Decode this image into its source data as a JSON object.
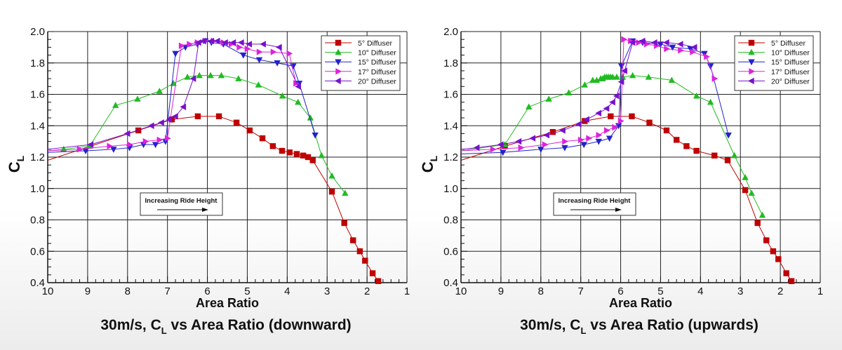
{
  "colors": {
    "s5": "#c00000",
    "s10": "#22bb22",
    "s15": "#2222cc",
    "s17": "#dd22dd",
    "s20": "#7711cc"
  },
  "chart_data": [
    {
      "type": "line",
      "title": "30m/s, C_L vs Area Ratio (downward)",
      "title_parts": {
        "pre": "30m/s, C",
        "sub": "L",
        "post": " vs Area Ratio (downward)"
      },
      "xlabel": "Area Ratio",
      "ylabel": {
        "main": "C",
        "sub": "L"
      },
      "xlim": [
        10,
        1
      ],
      "ylim": [
        0.4,
        2.0
      ],
      "xticks": [
        "10",
        "9",
        "8",
        "7",
        "6",
        "5",
        "4",
        "3",
        "2",
        "1"
      ],
      "yticks": [
        "0.4",
        "0.6",
        "0.8",
        "1.0",
        "1.2",
        "1.4",
        "1.6",
        "1.8",
        "2.0"
      ],
      "grid": true,
      "legend_position": "top-right",
      "annotation": "Increasing Ride Height",
      "series": [
        {
          "name": "5° Diffuser",
          "marker": "square",
          "color_key": "s5",
          "x": [
            10,
            7.73,
            6.89,
            6.24,
            5.71,
            5.27,
            4.94,
            4.62,
            4.36,
            4.13,
            3.94,
            3.76,
            3.6,
            3.48,
            3.36,
            2.88,
            2.57,
            2.35,
            2.18,
            2.05,
            1.86,
            1.72
          ],
          "y": [
            1.18,
            1.37,
            1.44,
            1.46,
            1.46,
            1.42,
            1.37,
            1.32,
            1.27,
            1.24,
            1.23,
            1.22,
            1.21,
            1.2,
            1.18,
            0.98,
            0.78,
            0.67,
            0.6,
            0.54,
            0.46,
            0.41
          ]
        },
        {
          "name": "10° Diffuser",
          "marker": "triangle-up",
          "color_key": "s10",
          "x": [
            10,
            9.6,
            8.95,
            8.3,
            7.75,
            7.2,
            6.85,
            6.5,
            6.2,
            5.92,
            5.65,
            5.22,
            4.72,
            4.12,
            3.73,
            3.42,
            3.14,
            2.88,
            2.55
          ],
          "y": [
            1.24,
            1.25,
            1.27,
            1.53,
            1.57,
            1.62,
            1.67,
            1.71,
            1.72,
            1.72,
            1.72,
            1.7,
            1.66,
            1.59,
            1.55,
            1.45,
            1.21,
            1.08,
            0.97
          ]
        },
        {
          "name": "15° Diffuser",
          "marker": "triangle-down",
          "color_key": "s15",
          "x": [
            10,
            9.05,
            8.35,
            7.95,
            7.6,
            7.3,
            7.05,
            6.8,
            6.55,
            6.25,
            6.05,
            5.9,
            5.6,
            5.1,
            4.7,
            4.25,
            3.85,
            3.7,
            3.3
          ],
          "y": [
            1.23,
            1.24,
            1.25,
            1.26,
            1.28,
            1.28,
            1.3,
            1.86,
            1.9,
            1.92,
            1.94,
            1.93,
            1.92,
            1.85,
            1.82,
            1.8,
            1.78,
            1.67,
            1.34
          ]
        },
        {
          "name": "17° Diffuser",
          "marker": "triangle-right",
          "color_key": "s17",
          "x": [
            10,
            9.2,
            8.45,
            7.95,
            7.55,
            7.2,
            7.0,
            6.65,
            6.45,
            6.25,
            6.05,
            5.85,
            5.6,
            5.4,
            5.2,
            5.0,
            4.7,
            4.35,
            3.95,
            3.78
          ],
          "y": [
            1.24,
            1.25,
            1.27,
            1.28,
            1.3,
            1.31,
            1.32,
            1.91,
            1.92,
            1.93,
            1.94,
            1.94,
            1.93,
            1.92,
            1.9,
            1.89,
            1.87,
            1.87,
            1.86,
            1.67
          ]
        },
        {
          "name": "20° Diffuser",
          "marker": "triangle-left",
          "color_key": "s20",
          "x": [
            10,
            8.92,
            8.0,
            7.4,
            7.15,
            6.95,
            6.8,
            6.6,
            6.35,
            6.22,
            6.1,
            5.9,
            5.75,
            5.55,
            5.35,
            5.15,
            4.95,
            4.6,
            4.2,
            3.72
          ],
          "y": [
            1.25,
            1.28,
            1.35,
            1.4,
            1.42,
            1.44,
            1.46,
            1.52,
            1.7,
            1.93,
            1.94,
            1.94,
            1.94,
            1.93,
            1.93,
            1.93,
            1.92,
            1.92,
            1.9,
            1.65
          ]
        }
      ]
    },
    {
      "type": "line",
      "title": "30m/s, C_L vs Area Ratio (upwards)",
      "title_parts": {
        "pre": "30m/s, C",
        "sub": "L",
        "post": " vs Area Ratio (upwards)"
      },
      "xlabel": "Area Ratio",
      "ylabel": {
        "main": "C",
        "sub": "L"
      },
      "xlim": [
        10,
        1
      ],
      "ylim": [
        0.4,
        2.0
      ],
      "xticks": [
        "10",
        "9",
        "8",
        "7",
        "6",
        "5",
        "4",
        "3",
        "2",
        "1"
      ],
      "yticks": [
        "0.4",
        "0.6",
        "0.8",
        "1.0",
        "1.2",
        "1.4",
        "1.6",
        "1.8",
        "2.0"
      ],
      "grid": true,
      "legend_position": "top-right",
      "annotation": "Increasing Ride Height",
      "series": [
        {
          "name": "5° Diffuser",
          "marker": "square",
          "color_key": "s5",
          "x": [
            10,
            8.9,
            7.7,
            6.9,
            6.25,
            5.72,
            5.28,
            4.85,
            4.6,
            4.35,
            4.1,
            3.65,
            3.32,
            2.88,
            2.57,
            2.35,
            2.18,
            2.05,
            1.85,
            1.72
          ],
          "y": [
            1.18,
            1.27,
            1.36,
            1.43,
            1.46,
            1.46,
            1.42,
            1.37,
            1.31,
            1.27,
            1.24,
            1.21,
            1.18,
            0.99,
            0.78,
            0.67,
            0.6,
            0.55,
            0.46,
            0.41
          ]
        },
        {
          "name": "10° Diffuser",
          "marker": "triangle-up",
          "color_key": "s10",
          "x": [
            10,
            8.9,
            8.3,
            7.8,
            7.3,
            6.9,
            6.7,
            6.6,
            6.5,
            6.45,
            6.4,
            6.35,
            6.3,
            6.25,
            6.2,
            6.1,
            5.95,
            5.7,
            5.3,
            4.72,
            4.1,
            3.75,
            3.15,
            2.88,
            2.72,
            2.45
          ],
          "y": [
            1.24,
            1.28,
            1.52,
            1.57,
            1.61,
            1.66,
            1.69,
            1.69,
            1.7,
            1.7,
            1.71,
            1.71,
            1.71,
            1.71,
            1.71,
            1.71,
            1.71,
            1.72,
            1.71,
            1.69,
            1.59,
            1.55,
            1.21,
            1.07,
            0.97,
            0.83
          ]
        },
        {
          "name": "15° Diffuser",
          "marker": "triangle-down",
          "color_key": "s15",
          "x": [
            10,
            8.95,
            8.0,
            7.4,
            6.92,
            6.55,
            6.28,
            6.05,
            5.98,
            5.7,
            5.45,
            5.0,
            4.7,
            4.25,
            3.9,
            3.75,
            3.3
          ],
          "y": [
            1.22,
            1.23,
            1.25,
            1.26,
            1.28,
            1.3,
            1.32,
            1.4,
            1.78,
            1.94,
            1.93,
            1.92,
            1.9,
            1.89,
            1.86,
            1.78,
            1.34
          ]
        },
        {
          "name": "17° Diffuser",
          "marker": "triangle-right",
          "color_key": "s17",
          "x": [
            10,
            9.2,
            8.5,
            7.9,
            7.4,
            7.0,
            6.8,
            6.55,
            6.35,
            6.15,
            6.0,
            5.92,
            5.75,
            5.55,
            5.35,
            5.1,
            4.85,
            4.5,
            4.2,
            3.85,
            3.65
          ],
          "y": [
            1.24,
            1.25,
            1.26,
            1.28,
            1.3,
            1.31,
            1.32,
            1.34,
            1.37,
            1.39,
            1.43,
            1.95,
            1.94,
            1.93,
            1.92,
            1.91,
            1.89,
            1.88,
            1.87,
            1.84,
            1.7
          ]
        },
        {
          "name": "20° Diffuser",
          "marker": "triangle-left",
          "color_key": "s20",
          "x": [
            10,
            9.6,
            9.0,
            8.55,
            8.2,
            7.85,
            7.45,
            7.05,
            6.85,
            6.55,
            6.35,
            6.2,
            6.1,
            5.98,
            5.9,
            5.7,
            5.45,
            5.15,
            4.85,
            4.5,
            4.15
          ],
          "y": [
            1.25,
            1.26,
            1.28,
            1.3,
            1.32,
            1.34,
            1.37,
            1.41,
            1.44,
            1.48,
            1.51,
            1.55,
            1.59,
            1.68,
            1.75,
            1.93,
            1.94,
            1.93,
            1.93,
            1.92,
            1.9
          ]
        }
      ]
    }
  ]
}
